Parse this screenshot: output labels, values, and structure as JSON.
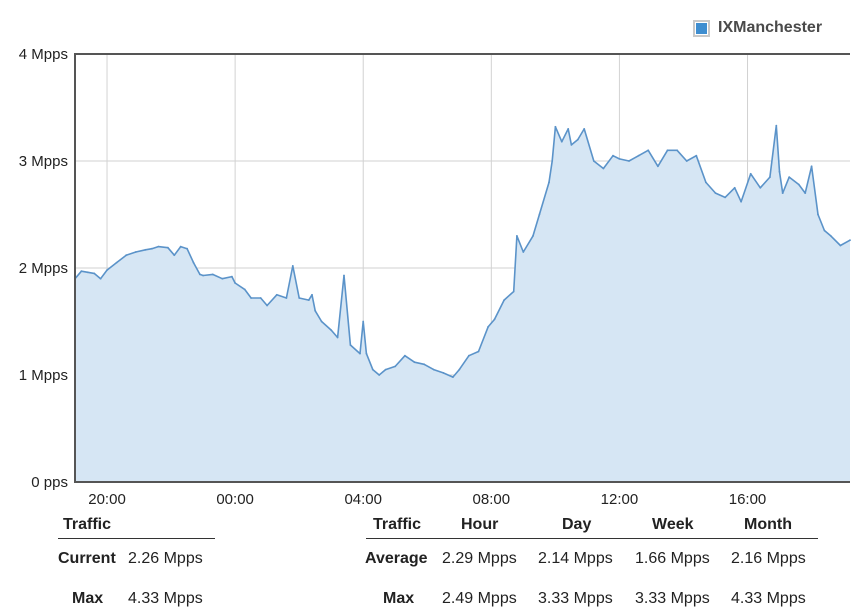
{
  "chart_data": {
    "type": "area",
    "legend": {
      "label": "IXManchester",
      "color": "#3f8ed0",
      "position": "top-right"
    },
    "y_ticks": [
      "0 pps",
      "1 Mpps",
      "2 Mpps",
      "3 Mpps",
      "4 Mpps"
    ],
    "ylim": [
      0,
      4
    ],
    "y_unit": "Mpps",
    "x_ticks": [
      "20:00",
      "00:00",
      "04:00",
      "08:00",
      "12:00",
      "16:00"
    ],
    "x_tick_hours": [
      20,
      24,
      28,
      32,
      36,
      40
    ],
    "xlim": [
      19,
      43.2
    ],
    "grid": true,
    "series": [
      {
        "name": "IXManchester",
        "color": "#5b93c9",
        "fill": "#d6e6f4",
        "x": [
          19.0,
          19.2,
          19.4,
          19.6,
          19.8,
          20.0,
          20.3,
          20.6,
          20.9,
          21.2,
          21.4,
          21.6,
          21.9,
          22.1,
          22.3,
          22.5,
          22.7,
          22.9,
          23.0,
          23.3,
          23.6,
          23.9,
          24.0,
          24.3,
          24.5,
          24.8,
          25.0,
          25.3,
          25.6,
          25.8,
          26.0,
          26.3,
          26.4,
          26.5,
          26.7,
          27.0,
          27.2,
          27.4,
          27.6,
          27.9,
          28.0,
          28.1,
          28.3,
          28.5,
          28.7,
          29.0,
          29.3,
          29.6,
          29.9,
          30.2,
          30.5,
          30.8,
          31.0,
          31.3,
          31.6,
          31.9,
          32.1,
          32.4,
          32.7,
          32.8,
          33.0,
          33.3,
          33.5,
          33.8,
          33.9,
          34.0,
          34.2,
          34.4,
          34.5,
          34.7,
          34.9,
          35.2,
          35.5,
          35.8,
          36.0,
          36.3,
          36.6,
          36.9,
          37.2,
          37.5,
          37.8,
          38.1,
          38.4,
          38.7,
          39.0,
          39.3,
          39.6,
          39.8,
          40.1,
          40.4,
          40.7,
          40.9,
          41.0,
          41.1,
          41.3,
          41.6,
          41.8,
          42.0,
          42.2,
          42.4,
          42.6,
          42.9,
          43.2
        ],
        "values": [
          1.9,
          1.97,
          1.96,
          1.95,
          1.9,
          1.98,
          2.05,
          2.12,
          2.15,
          2.17,
          2.18,
          2.2,
          2.19,
          2.12,
          2.2,
          2.18,
          2.05,
          1.94,
          1.93,
          1.94,
          1.9,
          1.92,
          1.86,
          1.8,
          1.72,
          1.72,
          1.65,
          1.75,
          1.72,
          2.02,
          1.72,
          1.7,
          1.75,
          1.6,
          1.5,
          1.42,
          1.35,
          1.93,
          1.28,
          1.2,
          1.5,
          1.2,
          1.05,
          1.0,
          1.05,
          1.08,
          1.18,
          1.12,
          1.1,
          1.05,
          1.02,
          0.98,
          1.05,
          1.18,
          1.22,
          1.45,
          1.52,
          1.7,
          1.78,
          2.3,
          2.15,
          2.3,
          2.5,
          2.8,
          3.0,
          3.32,
          3.18,
          3.3,
          3.15,
          3.2,
          3.3,
          3.0,
          2.93,
          3.05,
          3.02,
          3.0,
          3.05,
          3.1,
          2.95,
          3.1,
          3.1,
          3.0,
          3.05,
          2.8,
          2.7,
          2.66,
          2.75,
          2.62,
          2.88,
          2.75,
          2.85,
          3.33,
          2.9,
          2.7,
          2.85,
          2.78,
          2.7,
          2.95,
          2.5,
          2.35,
          2.3,
          2.21,
          2.26
        ]
      }
    ]
  },
  "stats_left": {
    "header": "Traffic",
    "rows": [
      {
        "label": "Current",
        "value": "2.26 Mpps"
      },
      {
        "label": "Max",
        "value": "4.33 Mpps"
      }
    ]
  },
  "stats_right": {
    "headers": [
      "Traffic",
      "Hour",
      "Day",
      "Week",
      "Month"
    ],
    "rows": [
      {
        "label": "Average",
        "values": [
          "2.29 Mpps",
          "2.14 Mpps",
          "1.66 Mpps",
          "2.16 Mpps"
        ]
      },
      {
        "label": "Max",
        "values": [
          "2.49 Mpps",
          "3.33 Mpps",
          "3.33 Mpps",
          "4.33 Mpps"
        ]
      }
    ]
  }
}
